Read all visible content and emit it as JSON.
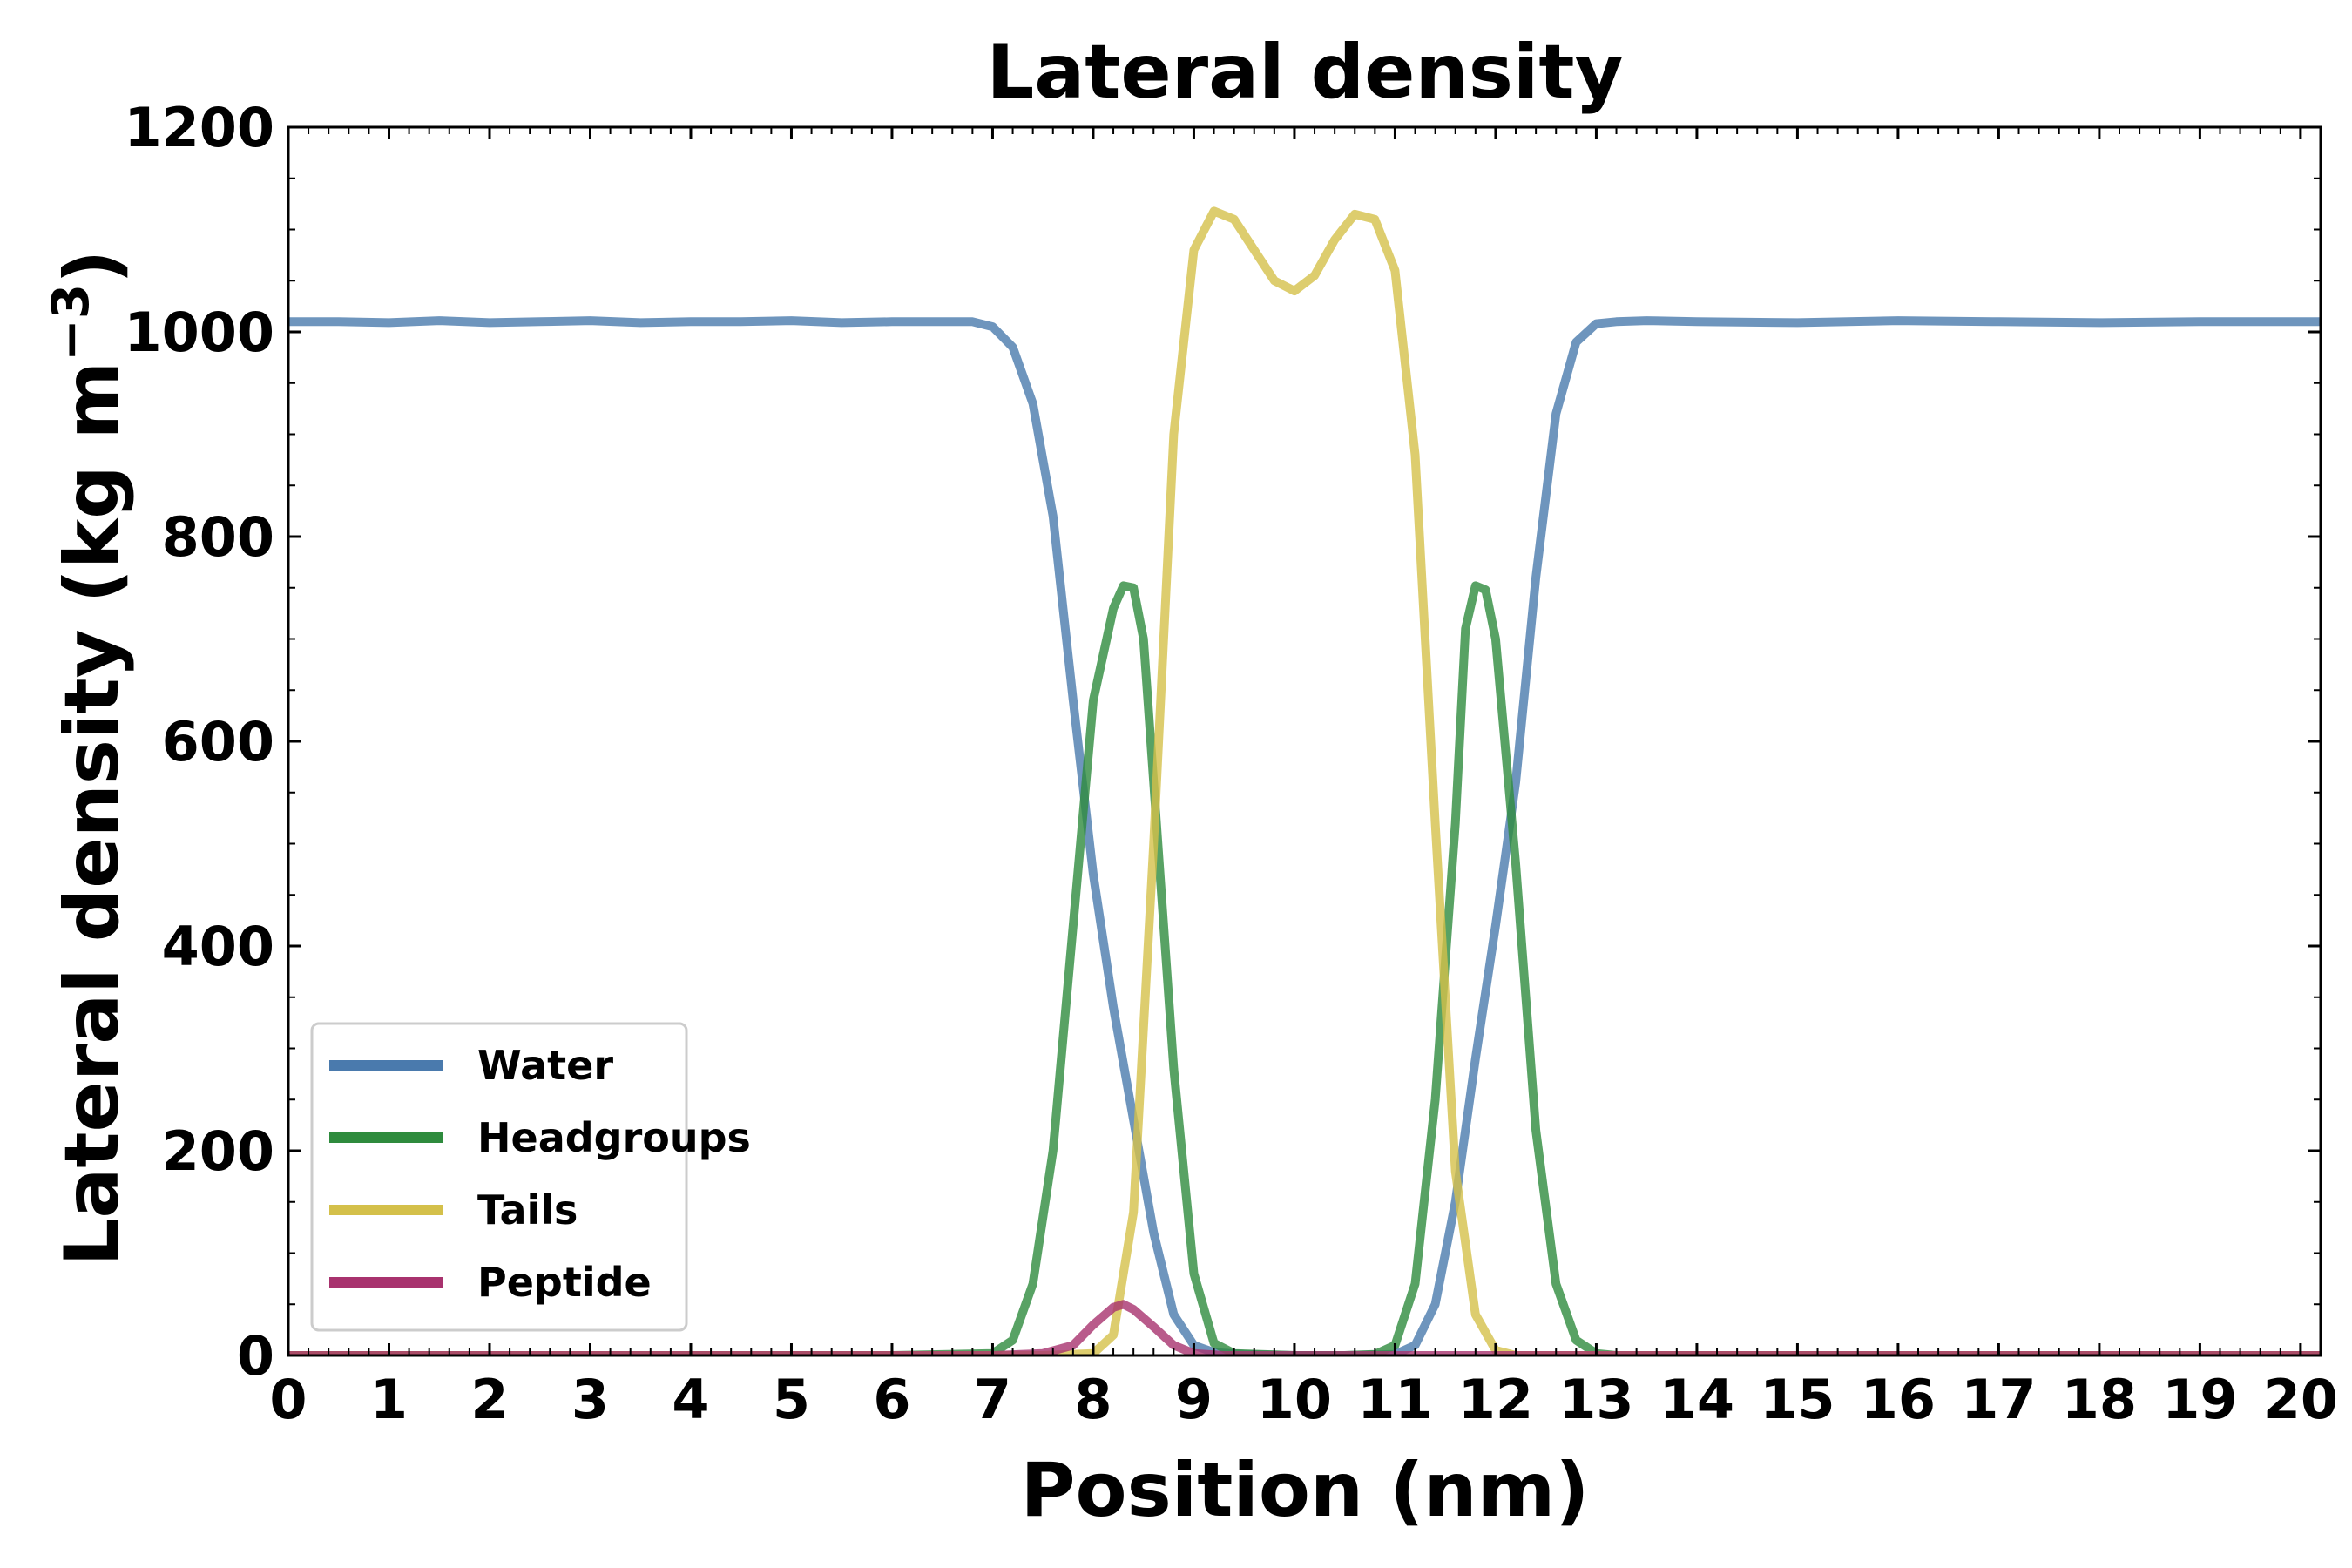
{
  "chart_data": {
    "type": "line",
    "title": "Lateral density",
    "xlabel": "Position (nm)",
    "ylabel": "Lateral density (kg m",
    "ylabel_sup": "−3",
    "ylabel_close": ")",
    "xlim": [
      0,
      20.2
    ],
    "ylim": [
      0,
      1200
    ],
    "xticks": [
      0,
      1,
      2,
      3,
      4,
      5,
      6,
      7,
      8,
      9,
      10,
      11,
      12,
      13,
      14,
      15,
      16,
      17,
      18,
      19,
      20
    ],
    "yticks": [
      0,
      200,
      400,
      600,
      800,
      1000,
      1200
    ],
    "grid": false,
    "legend_position": "lower-left",
    "series": [
      {
        "name": "Water",
        "color": "#4a7aad",
        "x": [
          0,
          0.5,
          1,
          1.5,
          2,
          2.5,
          3,
          3.5,
          4,
          4.5,
          5,
          5.5,
          6,
          6.5,
          6.8,
          7.0,
          7.2,
          7.4,
          7.6,
          7.8,
          8.0,
          8.2,
          8.4,
          8.6,
          8.8,
          9.0,
          9.2,
          9.5,
          10.0,
          10.5,
          11.0,
          11.2,
          11.4,
          11.6,
          11.8,
          12.0,
          12.2,
          12.4,
          12.6,
          12.8,
          13.0,
          13.2,
          13.5,
          14,
          15,
          16,
          17,
          18,
          19,
          20,
          20.2
        ],
        "y": [
          1010,
          1010,
          1009,
          1011,
          1009,
          1010,
          1011,
          1009,
          1010,
          1010,
          1011,
          1009,
          1010,
          1010,
          1010,
          1005,
          985,
          930,
          820,
          640,
          470,
          340,
          230,
          120,
          40,
          10,
          3,
          1,
          0,
          0,
          1,
          10,
          50,
          150,
          290,
          420,
          560,
          760,
          920,
          990,
          1008,
          1010,
          1011,
          1010,
          1009,
          1011,
          1010,
          1009,
          1010,
          1010,
          1010
        ]
      },
      {
        "name": "Headgroups",
        "color": "#2e8b3d",
        "x": [
          0,
          2,
          4,
          6,
          7.0,
          7.2,
          7.4,
          7.6,
          7.8,
          8.0,
          8.2,
          8.3,
          8.4,
          8.5,
          8.6,
          8.8,
          9.0,
          9.2,
          9.4,
          10.0,
          10.5,
          10.8,
          11.0,
          11.2,
          11.4,
          11.6,
          11.7,
          11.8,
          11.9,
          12.0,
          12.2,
          12.4,
          12.6,
          12.8,
          13.0,
          13.2,
          14,
          16,
          18,
          20,
          20.2
        ],
        "y": [
          0,
          0,
          0,
          0,
          2,
          15,
          70,
          200,
          420,
          640,
          730,
          752,
          750,
          700,
          560,
          280,
          80,
          12,
          2,
          0,
          0,
          1,
          10,
          70,
          250,
          520,
          710,
          752,
          748,
          700,
          480,
          220,
          70,
          15,
          2,
          0,
          0,
          0,
          0,
          0,
          0
        ]
      },
      {
        "name": "Tails",
        "color": "#d4c04a",
        "x": [
          0,
          4,
          7.5,
          8.0,
          8.2,
          8.4,
          8.6,
          8.8,
          9.0,
          9.2,
          9.4,
          9.6,
          9.8,
          10.0,
          10.2,
          10.4,
          10.6,
          10.8,
          11.0,
          11.2,
          11.4,
          11.6,
          11.8,
          12.0,
          12.2,
          13,
          16,
          20.2
        ],
        "y": [
          0,
          0,
          0,
          2,
          20,
          140,
          500,
          900,
          1080,
          1118,
          1110,
          1080,
          1050,
          1040,
          1055,
          1090,
          1115,
          1110,
          1060,
          880,
          520,
          180,
          40,
          5,
          0,
          0,
          0,
          0
        ]
      },
      {
        "name": "Peptide",
        "color": "#a8326e",
        "x": [
          0,
          7.0,
          7.5,
          7.8,
          8.0,
          8.2,
          8.3,
          8.4,
          8.6,
          8.8,
          9.0,
          9.3,
          10,
          12,
          14,
          20.2
        ],
        "y": [
          0,
          0,
          2,
          10,
          30,
          47,
          50,
          45,
          28,
          10,
          2,
          0,
          0,
          0,
          0,
          0
        ]
      }
    ]
  }
}
